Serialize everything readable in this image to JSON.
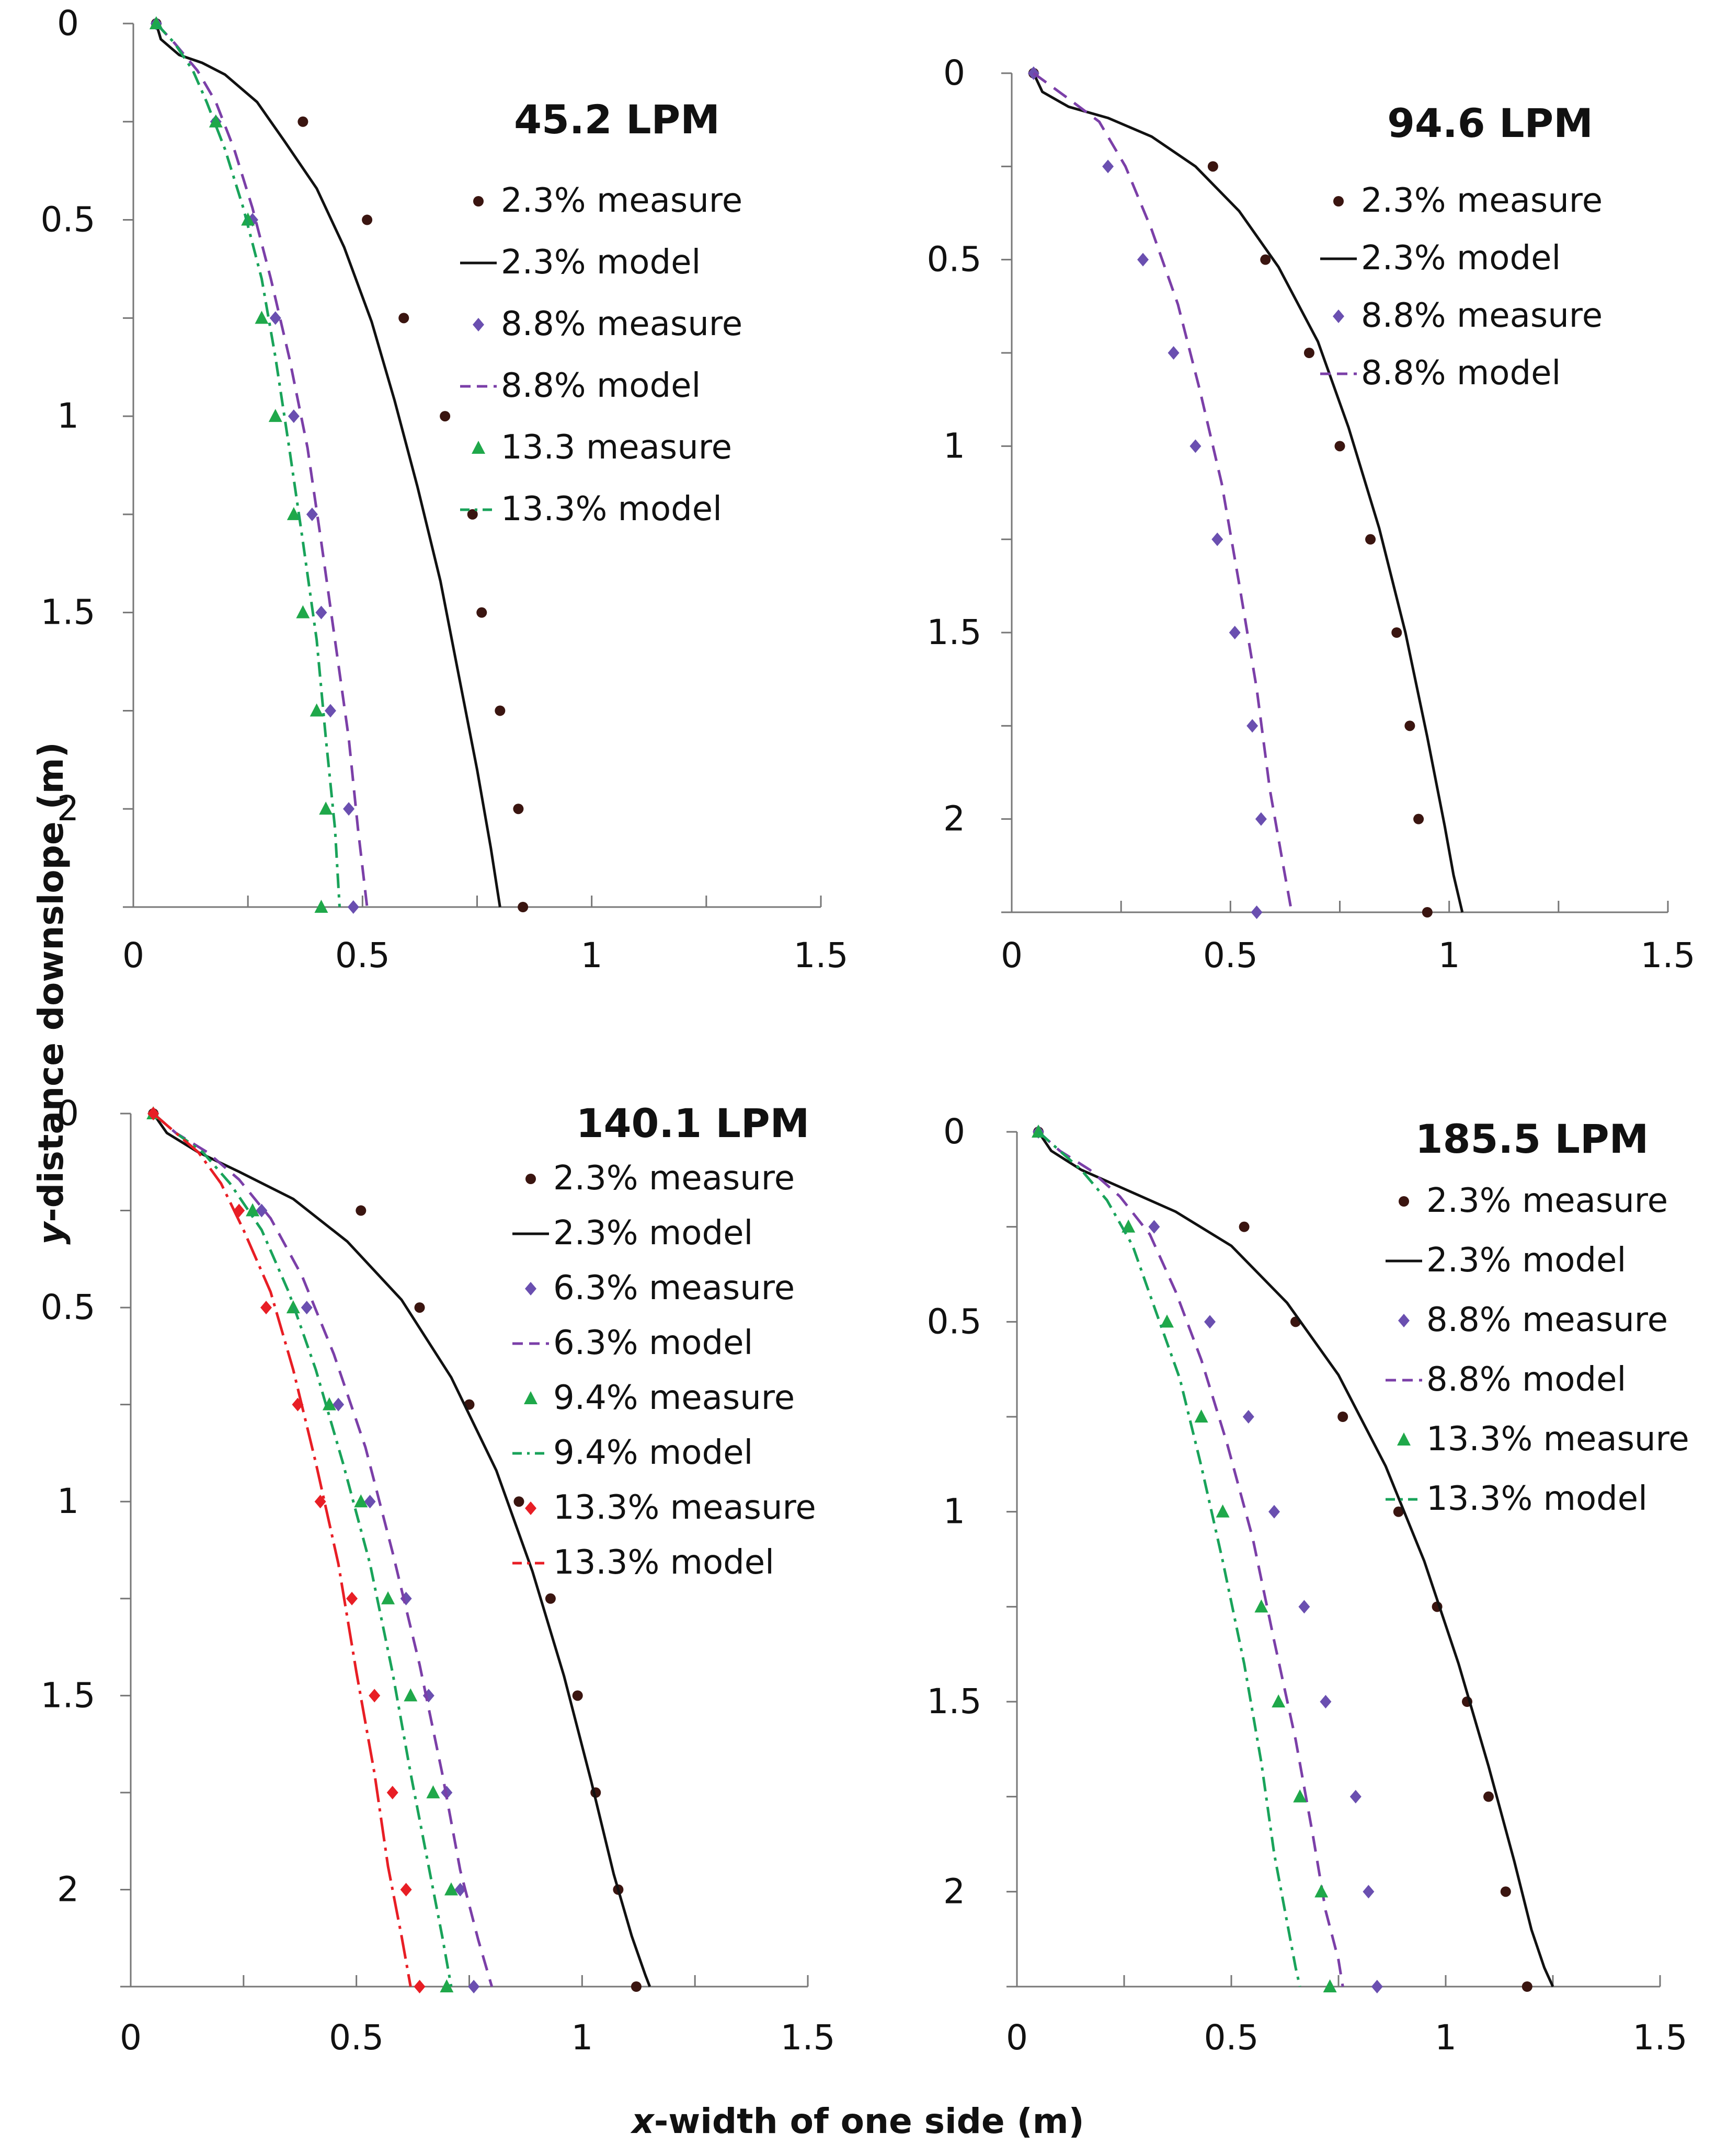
{
  "figure": {
    "ylabel_italic": "y",
    "ylabel_rest": "-distance downslope (m)",
    "xlabel_italic": "x",
    "xlabel_rest": "-width of one side (m)"
  },
  "colors": {
    "s23": "#111111",
    "s23_marker": "#3a1510",
    "s88": "#7b3fa8",
    "s88_marker": "#6a4fb0",
    "s133": "#19a35a",
    "s133_marker": "#1fa84a",
    "red": "#e81e25"
  },
  "chart_data": [
    {
      "type": "scatter",
      "title": "45.2 LPM",
      "xlabel": "x-width of one side (m)",
      "ylabel": "y-distance downslope (m)",
      "xlim": [
        0,
        1.5
      ],
      "ylim": [
        0,
        2.25
      ],
      "xticks": [
        "0",
        "0.5",
        "1",
        "1.5"
      ],
      "yticks": [
        "0",
        "0.5",
        "1",
        "1.5",
        "2"
      ],
      "legend_position": "top-right",
      "series": [
        {
          "name": "2.3% measure",
          "kind": "measure",
          "marker": "circle",
          "color": "#3a1510",
          "x": [
            0.05,
            0.37,
            0.51,
            0.59,
            0.68,
            0.74,
            0.76,
            0.8,
            0.84,
            0.85
          ],
          "y": [
            0,
            0.25,
            0.5,
            0.75,
            1.0,
            1.25,
            1.5,
            1.75,
            2.0,
            2.25
          ]
        },
        {
          "name": "2.3% model",
          "kind": "model",
          "dash": "solid",
          "color": "#111111",
          "x": [
            0.05,
            0.06,
            0.1,
            0.15,
            0.2,
            0.27,
            0.33,
            0.4,
            0.46,
            0.52,
            0.57,
            0.62,
            0.67,
            0.71,
            0.75,
            0.78,
            0.8
          ],
          "y": [
            0,
            0.04,
            0.08,
            0.1,
            0.13,
            0.2,
            0.3,
            0.42,
            0.57,
            0.76,
            0.96,
            1.18,
            1.42,
            1.66,
            1.9,
            2.1,
            2.25
          ]
        },
        {
          "name": "8.8% measure",
          "kind": "measure",
          "marker": "diamond",
          "color": "#6a4fb0",
          "x": [
            0.05,
            0.18,
            0.26,
            0.31,
            0.35,
            0.39,
            0.41,
            0.43,
            0.47,
            0.48
          ],
          "y": [
            0,
            0.25,
            0.5,
            0.75,
            1.0,
            1.25,
            1.5,
            1.75,
            2.0,
            2.25
          ]
        },
        {
          "name": "8.8% model",
          "kind": "model",
          "dash": "dash",
          "color": "#7b3fa8",
          "x": [
            0.05,
            0.09,
            0.14,
            0.18,
            0.22,
            0.26,
            0.3,
            0.34,
            0.38,
            0.41,
            0.44,
            0.47,
            0.49,
            0.51
          ],
          "y": [
            0,
            0.05,
            0.12,
            0.2,
            0.32,
            0.47,
            0.65,
            0.85,
            1.08,
            1.32,
            1.57,
            1.82,
            2.05,
            2.25
          ]
        },
        {
          "name": "13.3 measure",
          "kind": "measure",
          "marker": "triangle",
          "color": "#1fa84a",
          "x": [
            0.05,
            0.18,
            0.25,
            0.28,
            0.31,
            0.35,
            0.37,
            0.4,
            0.42,
            0.41
          ],
          "y": [
            0,
            0.25,
            0.5,
            0.75,
            1.0,
            1.25,
            1.5,
            1.75,
            2.0,
            2.25
          ]
        },
        {
          "name": "13.3% model",
          "kind": "model",
          "dash": "dashdot",
          "color": "#19a35a",
          "x": [
            0.05,
            0.09,
            0.13,
            0.16,
            0.2,
            0.24,
            0.28,
            0.31,
            0.34,
            0.37,
            0.4,
            0.42,
            0.44,
            0.45
          ],
          "y": [
            0,
            0.05,
            0.12,
            0.2,
            0.32,
            0.47,
            0.65,
            0.85,
            1.08,
            1.32,
            1.57,
            1.82,
            2.05,
            2.25
          ]
        }
      ]
    },
    {
      "type": "scatter",
      "title": "94.6 LPM",
      "xlabel": "x-width of one side (m)",
      "ylabel": "y-distance downslope (m)",
      "xlim": [
        0,
        1.5
      ],
      "ylim": [
        0,
        2.25
      ],
      "xticks": [
        "0",
        "0.5",
        "1",
        "1.5"
      ],
      "yticks": [
        "0",
        "0.5",
        "1",
        "1.5",
        "2"
      ],
      "legend_position": "top-right",
      "series": [
        {
          "name": "2.3% measure",
          "kind": "measure",
          "marker": "circle",
          "color": "#3a1510",
          "x": [
            0.05,
            0.46,
            0.58,
            0.68,
            0.75,
            0.82,
            0.88,
            0.91,
            0.93,
            0.95
          ],
          "y": [
            0,
            0.25,
            0.5,
            0.75,
            1.0,
            1.25,
            1.5,
            1.75,
            2.0,
            2.25
          ]
        },
        {
          "name": "2.3% model",
          "kind": "model",
          "dash": "solid",
          "color": "#111111",
          "x": [
            0.05,
            0.07,
            0.13,
            0.22,
            0.32,
            0.42,
            0.52,
            0.61,
            0.7,
            0.77,
            0.84,
            0.9,
            0.95,
            0.99,
            1.01,
            1.03
          ],
          "y": [
            0,
            0.05,
            0.09,
            0.12,
            0.17,
            0.25,
            0.37,
            0.52,
            0.72,
            0.95,
            1.22,
            1.5,
            1.78,
            2.02,
            2.15,
            2.25
          ]
        },
        {
          "name": "8.8% measure",
          "kind": "measure",
          "marker": "diamond",
          "color": "#6a4fb0",
          "x": [
            0.05,
            0.22,
            0.3,
            0.37,
            0.42,
            0.47,
            0.51,
            0.55,
            0.57,
            0.56
          ],
          "y": [
            0,
            0.25,
            0.5,
            0.75,
            1.0,
            1.25,
            1.5,
            1.75,
            2.0,
            2.25
          ]
        },
        {
          "name": "8.8% model",
          "kind": "model",
          "dash": "dash",
          "color": "#7b3fa8",
          "x": [
            0.05,
            0.12,
            0.2,
            0.26,
            0.32,
            0.38,
            0.43,
            0.48,
            0.52,
            0.56,
            0.59,
            0.62,
            0.64
          ],
          "y": [
            0,
            0.06,
            0.13,
            0.25,
            0.42,
            0.62,
            0.85,
            1.1,
            1.37,
            1.65,
            1.92,
            2.12,
            2.25
          ]
        }
      ]
    },
    {
      "type": "scatter",
      "title": "140.1 LPM",
      "xlabel": "x-width of one side (m)",
      "ylabel": "y-distance downslope (m)",
      "xlim": [
        0,
        1.5
      ],
      "ylim": [
        0,
        2.25
      ],
      "xticks": [
        "0",
        "0.5",
        "1",
        "1.5"
      ],
      "yticks": [
        "0",
        "0.5",
        "1",
        "1.5",
        "2"
      ],
      "legend_position": "top-right",
      "series": [
        {
          "name": "2.3% measure",
          "kind": "measure",
          "marker": "circle",
          "color": "#3a1510",
          "x": [
            0.05,
            0.51,
            0.64,
            0.75,
            0.86,
            0.93,
            0.99,
            1.03,
            1.08,
            1.12
          ],
          "y": [
            0,
            0.25,
            0.5,
            0.75,
            1.0,
            1.25,
            1.5,
            1.75,
            2.0,
            2.25
          ]
        },
        {
          "name": "2.3% model",
          "kind": "model",
          "dash": "solid",
          "color": "#111111",
          "x": [
            0.05,
            0.08,
            0.15,
            0.24,
            0.36,
            0.48,
            0.6,
            0.71,
            0.81,
            0.89,
            0.96,
            1.02,
            1.07,
            1.11,
            1.14,
            1.15
          ],
          "y": [
            0,
            0.05,
            0.1,
            0.15,
            0.22,
            0.33,
            0.48,
            0.68,
            0.92,
            1.18,
            1.45,
            1.72,
            1.96,
            2.12,
            2.22,
            2.25
          ]
        },
        {
          "name": "6.3% measure",
          "kind": "measure",
          "marker": "diamond",
          "color": "#6a4fb0",
          "x": [
            0.05,
            0.29,
            0.39,
            0.46,
            0.53,
            0.61,
            0.66,
            0.7,
            0.73,
            0.76
          ],
          "y": [
            0,
            0.25,
            0.5,
            0.75,
            1.0,
            1.25,
            1.5,
            1.75,
            2.0,
            2.25
          ]
        },
        {
          "name": "6.3% model",
          "kind": "model",
          "dash": "dash",
          "color": "#7b3fa8",
          "x": [
            0.05,
            0.1,
            0.17,
            0.24,
            0.31,
            0.38,
            0.45,
            0.52,
            0.58,
            0.64,
            0.69,
            0.73,
            0.77,
            0.8
          ],
          "y": [
            0,
            0.05,
            0.1,
            0.17,
            0.27,
            0.42,
            0.62,
            0.86,
            1.13,
            1.42,
            1.7,
            1.95,
            2.13,
            2.25
          ]
        },
        {
          "name": "9.4% measure",
          "kind": "measure",
          "marker": "triangle",
          "color": "#1fa84a",
          "x": [
            0.05,
            0.27,
            0.36,
            0.44,
            0.51,
            0.57,
            0.62,
            0.67,
            0.71,
            0.7
          ],
          "y": [
            0,
            0.25,
            0.5,
            0.75,
            1.0,
            1.25,
            1.5,
            1.75,
            2.0,
            2.25
          ]
        },
        {
          "name": "9.4% model",
          "kind": "model",
          "dash": "dashdot",
          "color": "#19a35a",
          "x": [
            0.05,
            0.1,
            0.16,
            0.22,
            0.29,
            0.35,
            0.41,
            0.47,
            0.53,
            0.58,
            0.62,
            0.66,
            0.69,
            0.71
          ],
          "y": [
            0,
            0.05,
            0.1,
            0.18,
            0.3,
            0.46,
            0.66,
            0.9,
            1.16,
            1.44,
            1.7,
            1.94,
            2.12,
            2.25
          ]
        },
        {
          "name": "13.3% measure",
          "kind": "measure",
          "marker": "diamond",
          "color": "#e81e25",
          "x": [
            0.05,
            0.24,
            0.3,
            0.37,
            0.42,
            0.49,
            0.54,
            0.58,
            0.61,
            0.64
          ],
          "y": [
            0,
            0.25,
            0.5,
            0.75,
            1.0,
            1.25,
            1.5,
            1.75,
            2.0,
            2.25
          ]
        },
        {
          "name": "13.3% model",
          "kind": "model",
          "dash": "longdashdot",
          "color": "#e81e25",
          "x": [
            0.05,
            0.1,
            0.15,
            0.2,
            0.25,
            0.31,
            0.36,
            0.41,
            0.46,
            0.5,
            0.54,
            0.57,
            0.6,
            0.62
          ],
          "y": [
            0,
            0.05,
            0.1,
            0.18,
            0.3,
            0.46,
            0.66,
            0.9,
            1.16,
            1.44,
            1.7,
            1.94,
            2.12,
            2.25
          ]
        }
      ]
    },
    {
      "type": "scatter",
      "title": "185.5 LPM",
      "xlabel": "x-width of one side (m)",
      "ylabel": "y-distance downslope (m)",
      "xlim": [
        0,
        1.5
      ],
      "ylim": [
        0,
        2.25
      ],
      "xticks": [
        "0",
        "0.5",
        "1",
        "1.5"
      ],
      "yticks": [
        "0",
        "0.5",
        "1",
        "1.5",
        "2"
      ],
      "legend_position": "top-right",
      "series": [
        {
          "name": "2.3% measure",
          "kind": "measure",
          "marker": "circle",
          "color": "#3a1510",
          "x": [
            0.05,
            0.53,
            0.65,
            0.76,
            0.89,
            0.98,
            1.05,
            1.1,
            1.14,
            1.19
          ],
          "y": [
            0,
            0.25,
            0.5,
            0.75,
            1.0,
            1.25,
            1.5,
            1.75,
            2.0,
            2.25
          ]
        },
        {
          "name": "2.3% model",
          "kind": "model",
          "dash": "solid",
          "color": "#111111",
          "x": [
            0.05,
            0.08,
            0.15,
            0.25,
            0.37,
            0.5,
            0.63,
            0.75,
            0.86,
            0.95,
            1.03,
            1.1,
            1.16,
            1.2,
            1.23,
            1.25
          ],
          "y": [
            0,
            0.05,
            0.1,
            0.15,
            0.21,
            0.3,
            0.45,
            0.64,
            0.88,
            1.13,
            1.4,
            1.67,
            1.92,
            2.1,
            2.2,
            2.25
          ]
        },
        {
          "name": "8.8% measure",
          "kind": "measure",
          "marker": "diamond",
          "color": "#6a4fb0",
          "x": [
            0.05,
            0.32,
            0.45,
            0.54,
            0.6,
            0.67,
            0.72,
            0.79,
            0.82,
            0.84
          ],
          "y": [
            0,
            0.25,
            0.5,
            0.75,
            1.0,
            1.25,
            1.5,
            1.75,
            2.0,
            2.25
          ]
        },
        {
          "name": "8.8% model",
          "kind": "model",
          "dash": "dash",
          "color": "#7b3fa8",
          "x": [
            0.05,
            0.1,
            0.17,
            0.24,
            0.31,
            0.37,
            0.43,
            0.49,
            0.55,
            0.6,
            0.65,
            0.69,
            0.72,
            0.75,
            0.76
          ],
          "y": [
            0,
            0.05,
            0.1,
            0.17,
            0.27,
            0.42,
            0.6,
            0.82,
            1.07,
            1.34,
            1.6,
            1.85,
            2.05,
            2.18,
            2.25
          ]
        },
        {
          "name": "13.3% measure",
          "kind": "measure",
          "marker": "triangle",
          "color": "#1fa84a",
          "x": [
            0.05,
            0.26,
            0.35,
            0.43,
            0.48,
            0.57,
            0.61,
            0.66,
            0.71,
            0.73
          ],
          "y": [
            0,
            0.25,
            0.5,
            0.75,
            1.0,
            1.25,
            1.5,
            1.75,
            2.0,
            2.25
          ]
        },
        {
          "name": "13.3% model",
          "kind": "model",
          "dash": "dashdot",
          "color": "#19a35a",
          "x": [
            0.05,
            0.1,
            0.15,
            0.21,
            0.27,
            0.32,
            0.38,
            0.43,
            0.48,
            0.53,
            0.57,
            0.6,
            0.63,
            0.65,
            0.66
          ],
          "y": [
            0,
            0.05,
            0.1,
            0.18,
            0.3,
            0.46,
            0.65,
            0.88,
            1.13,
            1.4,
            1.66,
            1.9,
            2.08,
            2.2,
            2.25
          ]
        }
      ]
    }
  ]
}
